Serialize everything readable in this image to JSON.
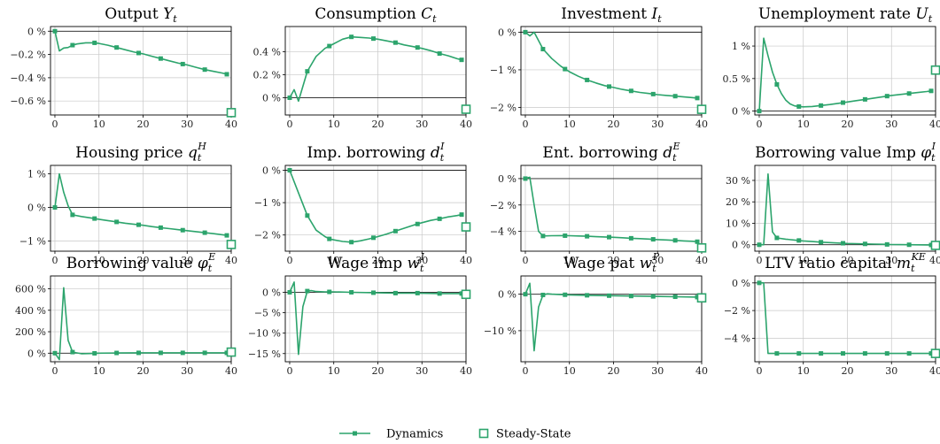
{
  "colors": {
    "series": "#2ca46c",
    "frame": "#000000",
    "grid": "#c8c8c8",
    "zero": "#222222"
  },
  "legend": {
    "dynamics_label": "Dynamics",
    "steady_state_label": "Steady-State"
  },
  "chart_data": [
    {
      "type": "line",
      "title": "Output Y_t",
      "title_main": "Output ",
      "title_sym": "Y",
      "title_sub": "t",
      "title_sup": "",
      "xlim": [
        -1,
        40
      ],
      "ylim": [
        -0.72,
        0.04
      ],
      "xticks": [
        0,
        10,
        20,
        30,
        40
      ],
      "yticks": [
        0,
        -0.2,
        -0.4,
        -0.6
      ],
      "yticklabels": [
        "0 %",
        "−0.2 %",
        "−0.4 %",
        "−0.6 %"
      ],
      "x": [
        0,
        1,
        2,
        3,
        4,
        5,
        6,
        7,
        8,
        9,
        10,
        12,
        14,
        16,
        18,
        20,
        22,
        24,
        26,
        28,
        30,
        32,
        34,
        36,
        38,
        39
      ],
      "y": [
        0,
        -0.17,
        -0.145,
        -0.14,
        -0.12,
        -0.11,
        -0.105,
        -0.1,
        -0.1,
        -0.1,
        -0.105,
        -0.12,
        -0.14,
        -0.16,
        -0.18,
        -0.195,
        -0.215,
        -0.235,
        -0.255,
        -0.275,
        -0.29,
        -0.31,
        -0.33,
        -0.345,
        -0.36,
        -0.37
      ],
      "markers_x": [
        0,
        4,
        9,
        14,
        19,
        24,
        29,
        34,
        39
      ],
      "steady_state": [
        40,
        -0.7
      ]
    },
    {
      "type": "line",
      "title": "Consumption C_t",
      "title_main": "Consumption ",
      "title_sym": "C",
      "title_sub": "t",
      "title_sup": "",
      "xlim": [
        -1,
        40
      ],
      "ylim": [
        -0.15,
        0.62
      ],
      "xticks": [
        0,
        10,
        20,
        30,
        40
      ],
      "yticks": [
        0,
        0.2,
        0.4
      ],
      "yticklabels": [
        "0 %",
        "0.2 %",
        "0.4 %"
      ],
      "x": [
        0,
        1,
        2,
        3,
        4,
        6,
        8,
        10,
        12,
        14,
        16,
        18,
        20,
        22,
        24,
        26,
        28,
        30,
        32,
        34,
        36,
        38,
        39
      ],
      "y": [
        0,
        0.07,
        -0.03,
        0.1,
        0.23,
        0.36,
        0.43,
        0.47,
        0.51,
        0.53,
        0.525,
        0.52,
        0.51,
        0.495,
        0.48,
        0.46,
        0.445,
        0.43,
        0.41,
        0.385,
        0.365,
        0.34,
        0.33
      ],
      "markers_x": [
        0,
        4,
        9,
        14,
        19,
        24,
        29,
        34,
        39
      ],
      "steady_state": [
        40,
        -0.1
      ]
    },
    {
      "type": "line",
      "title": "Investment I_t",
      "title_main": "Investment ",
      "title_sym": "I",
      "title_sub": "t",
      "title_sup": "",
      "xlim": [
        -1,
        40
      ],
      "ylim": [
        -2.2,
        0.15
      ],
      "xticks": [
        0,
        10,
        20,
        30,
        40
      ],
      "yticks": [
        0,
        -1,
        -2
      ],
      "yticklabels": [
        "0 %",
        "−1 %",
        "−2 %"
      ],
      "x": [
        0,
        1,
        2,
        4,
        6,
        8,
        9,
        10,
        12,
        14,
        16,
        18,
        20,
        22,
        24,
        26,
        28,
        30,
        32,
        34,
        36,
        38,
        39
      ],
      "y": [
        0,
        -0.1,
        0,
        -0.45,
        -0.7,
        -0.9,
        -0.98,
        -1.05,
        -1.17,
        -1.27,
        -1.35,
        -1.42,
        -1.47,
        -1.52,
        -1.56,
        -1.6,
        -1.63,
        -1.66,
        -1.68,
        -1.7,
        -1.72,
        -1.74,
        -1.75
      ],
      "markers_x": [
        0,
        4,
        9,
        14,
        19,
        24,
        29,
        34,
        39
      ],
      "steady_state": [
        40,
        -2.05
      ]
    },
    {
      "type": "line",
      "title": "Unemployment rate U_t",
      "title_main": "Unemployment rate ",
      "title_sym": "U",
      "title_sub": "t",
      "title_sup": "",
      "xlim": [
        -1,
        40
      ],
      "ylim": [
        -0.06,
        1.3
      ],
      "xticks": [
        0,
        10,
        20,
        30,
        40
      ],
      "yticks": [
        0,
        0.5,
        1
      ],
      "yticklabels": [
        "0 %",
        "0.5 %",
        "1 %"
      ],
      "x": [
        0,
        1,
        2,
        3,
        4,
        5,
        6,
        7,
        8,
        9,
        10,
        12,
        14,
        16,
        18,
        20,
        22,
        24,
        26,
        28,
        30,
        32,
        34,
        36,
        38,
        39
      ],
      "y": [
        0,
        1.12,
        0.85,
        0.6,
        0.41,
        0.27,
        0.17,
        0.11,
        0.08,
        0.07,
        0.065,
        0.07,
        0.085,
        0.1,
        0.12,
        0.14,
        0.16,
        0.18,
        0.2,
        0.22,
        0.24,
        0.255,
        0.27,
        0.285,
        0.3,
        0.31
      ],
      "markers_x": [
        0,
        4,
        9,
        14,
        19,
        24,
        29,
        34,
        39
      ],
      "steady_state": [
        40,
        0.63
      ]
    },
    {
      "type": "line",
      "title": "Housing price q_t^H",
      "title_main": "Housing price ",
      "title_sym": "q",
      "title_sub": "t",
      "title_sup": "H",
      "xlim": [
        -1,
        40
      ],
      "ylim": [
        -1.3,
        1.25
      ],
      "xticks": [
        0,
        10,
        20,
        30,
        40
      ],
      "yticks": [
        1,
        0,
        -1
      ],
      "yticklabels": [
        "1 %",
        "0 %",
        "−1 %"
      ],
      "x": [
        0,
        1,
        2,
        3,
        4,
        6,
        8,
        10,
        12,
        14,
        16,
        18,
        20,
        22,
        24,
        26,
        28,
        30,
        32,
        34,
        36,
        38,
        39
      ],
      "y": [
        0,
        1.0,
        0.45,
        0.05,
        -0.22,
        -0.27,
        -0.31,
        -0.35,
        -0.39,
        -0.43,
        -0.47,
        -0.5,
        -0.53,
        -0.57,
        -0.6,
        -0.63,
        -0.66,
        -0.69,
        -0.72,
        -0.75,
        -0.78,
        -0.81,
        -0.83
      ],
      "markers_x": [
        0,
        4,
        9,
        14,
        19,
        24,
        29,
        34,
        39
      ],
      "steady_state": [
        40,
        -1.1
      ]
    },
    {
      "type": "line",
      "title": "Imp. borrowing d_t^I",
      "title_main": "Imp. borrowing ",
      "title_sym": "d",
      "title_sub": "t",
      "title_sup": "I",
      "xlim": [
        -1,
        40
      ],
      "ylim": [
        -2.5,
        0.15
      ],
      "xticks": [
        0,
        10,
        20,
        30,
        40
      ],
      "yticks": [
        0,
        -1,
        -2
      ],
      "yticklabels": [
        "0 %",
        "−1 %",
        "−2 %"
      ],
      "x": [
        0,
        2,
        4,
        6,
        8,
        9,
        10,
        12,
        14,
        16,
        18,
        20,
        22,
        24,
        26,
        28,
        30,
        32,
        34,
        36,
        38,
        39
      ],
      "y": [
        0,
        -0.7,
        -1.4,
        -1.85,
        -2.05,
        -2.12,
        -2.15,
        -2.2,
        -2.22,
        -2.18,
        -2.12,
        -2.05,
        -1.97,
        -1.88,
        -1.79,
        -1.7,
        -1.62,
        -1.55,
        -1.5,
        -1.44,
        -1.4,
        -1.37
      ],
      "markers_x": [
        0,
        4,
        9,
        14,
        19,
        24,
        29,
        34,
        39
      ],
      "steady_state": [
        40,
        -1.75
      ]
    },
    {
      "type": "line",
      "title": "Ent. borrowing d_t^E",
      "title_main": "Ent. borrowing ",
      "title_sym": "d",
      "title_sub": "t",
      "title_sup": "E",
      "xlim": [
        -1,
        40
      ],
      "ylim": [
        -5.5,
        1.0
      ],
      "xticks": [
        0,
        10,
        20,
        30,
        40
      ],
      "yticks": [
        0,
        -2,
        -4
      ],
      "yticklabels": [
        "0 %",
        "−2 %",
        "−4 %"
      ],
      "x": [
        0,
        1,
        2,
        3,
        4,
        6,
        8,
        10,
        12,
        14,
        16,
        18,
        20,
        22,
        24,
        26,
        28,
        30,
        32,
        34,
        36,
        38,
        39
      ],
      "y": [
        0,
        0.1,
        -2.0,
        -4.0,
        -4.35,
        -4.33,
        -4.32,
        -4.33,
        -4.35,
        -4.37,
        -4.4,
        -4.42,
        -4.45,
        -4.48,
        -4.52,
        -4.55,
        -4.58,
        -4.62,
        -4.65,
        -4.68,
        -4.72,
        -4.75,
        -4.78
      ],
      "markers_x": [
        0,
        4,
        9,
        14,
        19,
        24,
        29,
        34,
        39
      ],
      "steady_state": [
        40,
        -5.25
      ]
    },
    {
      "type": "line",
      "title": "Borrowing value Imp φ_t^I",
      "title_main": "Borrowing value Imp ",
      "title_sym": "φ",
      "title_sub": "t",
      "title_sup": "I",
      "xlim": [
        -1,
        40
      ],
      "ylim": [
        -3,
        37
      ],
      "xticks": [
        0,
        10,
        20,
        30,
        40
      ],
      "yticks": [
        0,
        10,
        20,
        30
      ],
      "yticklabels": [
        "0 %",
        "10 %",
        "20 %",
        "30 %"
      ],
      "x": [
        0,
        1,
        2,
        3,
        4,
        6,
        8,
        10,
        12,
        14,
        16,
        18,
        20,
        22,
        24,
        26,
        28,
        30,
        32,
        34,
        36,
        38,
        39
      ],
      "y": [
        0,
        0,
        33,
        6,
        3.2,
        2.6,
        2.2,
        1.8,
        1.5,
        1.2,
        1.0,
        0.8,
        0.6,
        0.5,
        0.4,
        0.3,
        0.2,
        0.1,
        0.05,
        0.0,
        -0.05,
        -0.08,
        -0.1
      ],
      "markers_x": [
        0,
        4,
        9,
        14,
        19,
        24,
        29,
        34,
        39
      ],
      "steady_state": [
        40,
        -0.3
      ]
    },
    {
      "type": "line",
      "title": "Borrowing value φ_t^E",
      "title_main": "Borrowing value ",
      "title_sym": "φ",
      "title_sub": "t",
      "title_sup": "E",
      "xlim": [
        -1,
        40
      ],
      "ylim": [
        -80,
        720
      ],
      "xticks": [
        0,
        10,
        20,
        30,
        40
      ],
      "yticks": [
        0,
        200,
        400,
        600
      ],
      "yticklabels": [
        "0 %",
        "200 %",
        "400 %",
        "600 %"
      ],
      "x": [
        0,
        1,
        2,
        3,
        4,
        6,
        8,
        10,
        14,
        19,
        24,
        29,
        34,
        39
      ],
      "y": [
        0,
        -60,
        610,
        120,
        10,
        -5,
        -3,
        0,
        2,
        3,
        3,
        3,
        3,
        3
      ],
      "markers_x": [
        0,
        4,
        9,
        14,
        19,
        24,
        29,
        34,
        39
      ],
      "steady_state": [
        40,
        10
      ]
    },
    {
      "type": "line",
      "title": "Wage imp w_t^I",
      "title_main": "Wage imp ",
      "title_sym": "w",
      "title_sub": "t",
      "title_sup": "I",
      "xlim": [
        -1,
        40
      ],
      "ylim": [
        -17,
        4
      ],
      "xticks": [
        0,
        10,
        20,
        30,
        40
      ],
      "yticks": [
        0,
        -5,
        -10,
        -15
      ],
      "yticklabels": [
        "0 %",
        "−5 %",
        "−10 %",
        "−15 %"
      ],
      "x": [
        0,
        1,
        2,
        3,
        4,
        5,
        6,
        8,
        10,
        14,
        19,
        24,
        29,
        34,
        39
      ],
      "y": [
        0,
        2.5,
        -15.2,
        -3.5,
        0.3,
        0.4,
        0.2,
        0.1,
        0.1,
        0,
        -0.1,
        -0.2,
        -0.2,
        -0.3,
        -0.3
      ],
      "markers_x": [
        0,
        4,
        9,
        14,
        19,
        24,
        29,
        34,
        39
      ],
      "steady_state": [
        40,
        -0.5
      ]
    },
    {
      "type": "line",
      "title": "Wage pat w_t^P",
      "title_main": "Wage pat ",
      "title_sym": "w",
      "title_sub": "t",
      "title_sup": "P",
      "xlim": [
        -1,
        40
      ],
      "ylim": [
        -18.5,
        5
      ],
      "xticks": [
        0,
        10,
        20,
        30,
        40
      ],
      "yticks": [
        0,
        -10
      ],
      "yticklabels": [
        "0 %",
        "−10 %"
      ],
      "x": [
        0,
        1,
        2,
        3,
        4,
        5,
        6,
        8,
        10,
        14,
        19,
        24,
        29,
        34,
        39
      ],
      "y": [
        0,
        3,
        -15.5,
        -3.5,
        -0.2,
        0.1,
        0,
        -0.1,
        -0.2,
        -0.3,
        -0.4,
        -0.5,
        -0.6,
        -0.7,
        -0.8
      ],
      "markers_x": [
        0,
        4,
        9,
        14,
        19,
        24,
        29,
        34,
        39
      ],
      "steady_state": [
        40,
        -1.0
      ]
    },
    {
      "type": "line",
      "title": "LTV ratio capital m_t^KE",
      "title_main": "LTV ratio capital ",
      "title_sym": "m",
      "title_sub": "t",
      "title_sup": "KE",
      "xlim": [
        -1,
        40
      ],
      "ylim": [
        -5.7,
        0.5
      ],
      "xticks": [
        0,
        10,
        20,
        30,
        40
      ],
      "yticks": [
        0,
        -2,
        -4
      ],
      "yticklabels": [
        "0 %",
        "−2 %",
        "−4 %"
      ],
      "x": [
        0,
        1,
        2,
        3,
        4,
        9,
        14,
        19,
        24,
        29,
        34,
        39
      ],
      "y": [
        0,
        0,
        -5.1,
        -5.1,
        -5.1,
        -5.1,
        -5.1,
        -5.1,
        -5.1,
        -5.1,
        -5.1,
        -5.1
      ],
      "markers_x": [
        0,
        4,
        9,
        14,
        19,
        24,
        29,
        34,
        39
      ],
      "steady_state": [
        40,
        -5.1
      ]
    }
  ]
}
